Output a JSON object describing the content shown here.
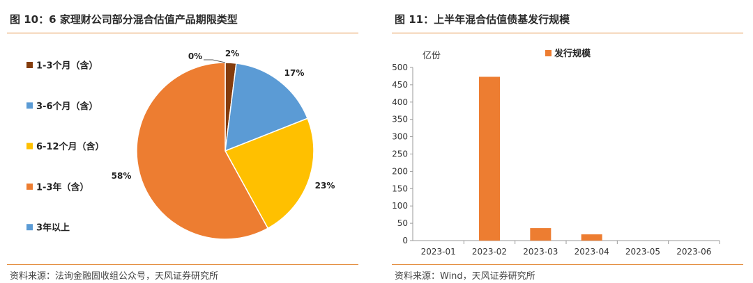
{
  "left": {
    "title": "图 10：6 家理财公司部分混合估值产品期限类型",
    "source": "资料来源：法询金融固收组公众号，天风证券研究所"
  },
  "right": {
    "title": "图 11：上半年混合估值债基发行规模",
    "source": "资料来源：Wind，天风证券研究所"
  },
  "colors": {
    "accent_rule": "#e38d3e"
  },
  "chart_data": [
    {
      "type": "pie",
      "slices": [
        {
          "label": "1-3个月（含）",
          "value": 2,
          "data_label": "2%",
          "color": "#843c0c"
        },
        {
          "label": "3-6个月（含）",
          "value": 17,
          "data_label": "17%",
          "color": "#5b9bd5"
        },
        {
          "label": "6-12个月（含）",
          "value": 23,
          "data_label": "23%",
          "color": "#ffc000"
        },
        {
          "label": "1-3年（含）",
          "value": 58,
          "data_label": "58%",
          "color": "#ed7d31"
        },
        {
          "label": "3年以上",
          "value": 0,
          "data_label": "0%",
          "color": "#5b9bd5"
        }
      ],
      "legend_position": "left"
    },
    {
      "type": "bar",
      "categories": [
        "2023-01",
        "2023-02",
        "2023-03",
        "2023-04",
        "2023-05",
        "2023-06"
      ],
      "series": [
        {
          "name": "发行规模",
          "values": [
            0,
            473,
            36,
            18,
            0,
            0
          ],
          "color": "#ed7d31"
        }
      ],
      "ylabel": "亿份",
      "ylim": [
        0,
        500
      ],
      "yticks": [
        0,
        50,
        100,
        150,
        200,
        250,
        300,
        350,
        400,
        450,
        500
      ],
      "grid": false,
      "legend_position": "top"
    }
  ]
}
